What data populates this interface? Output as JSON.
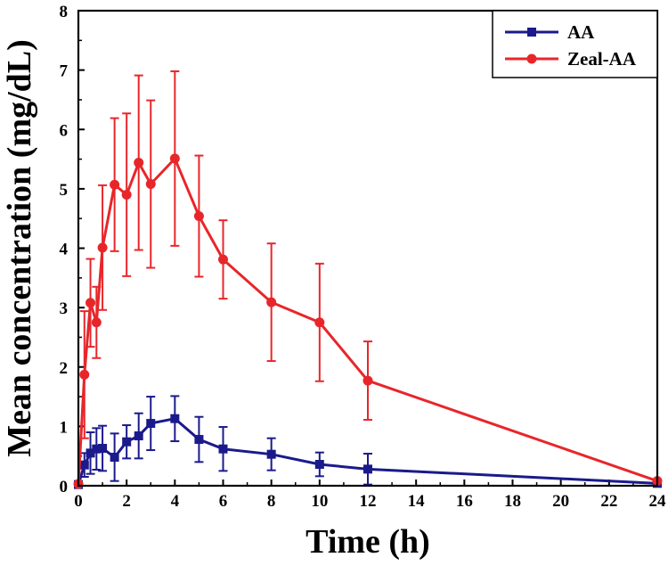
{
  "chart_data": {
    "type": "line",
    "title": "",
    "xlabel": "Time (h)",
    "ylabel": "Mean concentration (mg/dL)",
    "xlim": [
      0,
      24
    ],
    "ylim": [
      0,
      8
    ],
    "xticks": [
      0,
      2,
      4,
      6,
      8,
      10,
      12,
      14,
      16,
      18,
      20,
      22,
      24
    ],
    "yticks": [
      0,
      1,
      2,
      3,
      4,
      5,
      6,
      7,
      8
    ],
    "grid": false,
    "legend_position": "top-right",
    "series": [
      {
        "name": "AA",
        "color": "#1a1a8c",
        "marker": "square",
        "x": [
          0,
          0.25,
          0.5,
          0.75,
          1,
          1.5,
          2,
          2.5,
          3,
          4,
          5,
          6,
          8,
          10,
          12,
          24
        ],
        "y": [
          0.02,
          0.35,
          0.55,
          0.62,
          0.63,
          0.48,
          0.74,
          0.84,
          1.05,
          1.13,
          0.78,
          0.62,
          0.53,
          0.36,
          0.28,
          0.04
        ],
        "err": [
          0,
          0.2,
          0.35,
          0.35,
          0.38,
          0.4,
          0.28,
          0.38,
          0.45,
          0.38,
          0.38,
          0.37,
          0.27,
          0.2,
          0.26,
          0
        ]
      },
      {
        "name": "Zeal-AA",
        "color": "#e8262a",
        "marker": "circle",
        "x": [
          0,
          0.25,
          0.5,
          0.75,
          1,
          1.5,
          2,
          2.5,
          3,
          4,
          5,
          6,
          8,
          10,
          12,
          24
        ],
        "y": [
          0.03,
          1.87,
          3.08,
          2.75,
          4.01,
          5.07,
          4.9,
          5.44,
          5.08,
          5.51,
          4.54,
          3.81,
          3.09,
          2.75,
          1.77,
          0.08
        ],
        "err": [
          0,
          1.07,
          0.74,
          0.6,
          1.05,
          1.12,
          1.37,
          1.47,
          1.41,
          1.47,
          1.02,
          0.66,
          0.99,
          0.99,
          0.66,
          0
        ]
      }
    ]
  }
}
